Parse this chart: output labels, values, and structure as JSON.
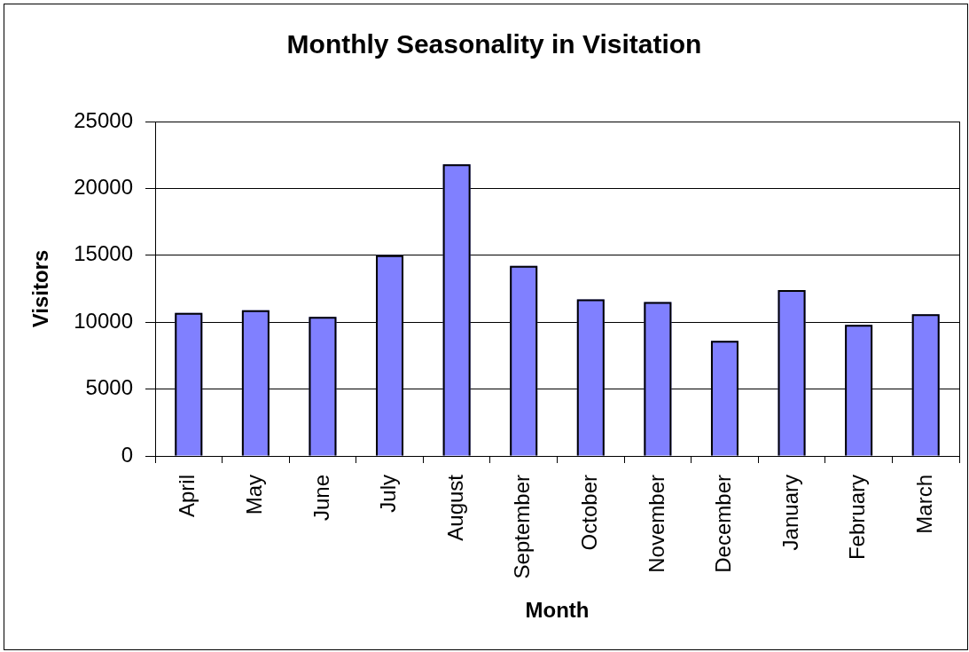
{
  "chart_data": {
    "type": "bar",
    "title": "Monthly Seasonality in Visitation",
    "xlabel": "Month",
    "ylabel": "Visitors",
    "categories": [
      "April",
      "May",
      "June",
      "July",
      "August",
      "September",
      "October",
      "November",
      "December",
      "January",
      "February",
      "March"
    ],
    "values": [
      10700,
      10900,
      10400,
      15000,
      21800,
      14200,
      11700,
      11500,
      8600,
      12400,
      9800,
      10600
    ],
    "color": "#8080ff",
    "ylim": [
      0,
      25000
    ],
    "yticks": [
      0,
      5000,
      10000,
      15000,
      20000,
      25000
    ],
    "grid": "y"
  }
}
